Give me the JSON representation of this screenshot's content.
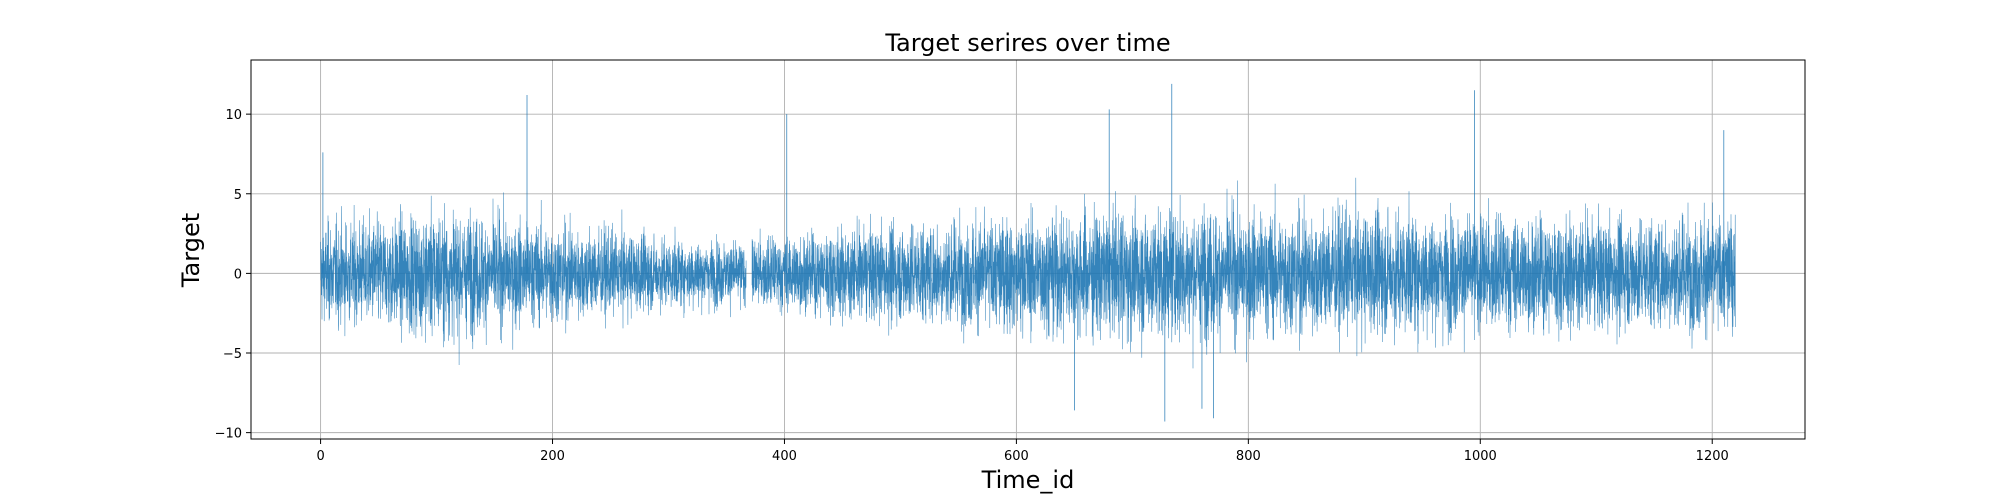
{
  "chart_data": {
    "type": "line",
    "title": "Target serires over time",
    "xlabel": "Time_id",
    "ylabel": "Target",
    "xlim": [
      -60,
      1280
    ],
    "ylim": [
      -10.4,
      13.4
    ],
    "xticks": [
      0,
      200,
      400,
      600,
      800,
      1000,
      1200
    ],
    "yticks": [
      -10,
      -5,
      0,
      5,
      10
    ],
    "grid": true,
    "line_color": "#1f77b4",
    "series": [
      {
        "x_range": [
          0,
          1220
        ],
        "gap": [
          367,
          372
        ],
        "amplitude_envelope": [
          {
            "x": 0,
            "amp": 5.0
          },
          {
            "x": 60,
            "amp": 5.5
          },
          {
            "x": 100,
            "amp": 6.5
          },
          {
            "x": 150,
            "amp": 5.5
          },
          {
            "x": 200,
            "amp": 5.0
          },
          {
            "x": 260,
            "amp": 4.2
          },
          {
            "x": 300,
            "amp": 3.5
          },
          {
            "x": 365,
            "amp": 3.2
          },
          {
            "x": 400,
            "amp": 3.8
          },
          {
            "x": 500,
            "amp": 5.0
          },
          {
            "x": 600,
            "amp": 5.8
          },
          {
            "x": 700,
            "amp": 6.5
          },
          {
            "x": 800,
            "amp": 6.2
          },
          {
            "x": 900,
            "amp": 6.3
          },
          {
            "x": 1000,
            "amp": 5.8
          },
          {
            "x": 1100,
            "amp": 5.5
          },
          {
            "x": 1220,
            "amp": 6.0
          }
        ],
        "spikes": [
          {
            "x": 2,
            "y": 7.6
          },
          {
            "x": 178,
            "y": 11.2
          },
          {
            "x": 402,
            "y": 10.0
          },
          {
            "x": 650,
            "y": -8.6
          },
          {
            "x": 680,
            "y": 10.3
          },
          {
            "x": 728,
            "y": -9.3
          },
          {
            "x": 734,
            "y": 11.9
          },
          {
            "x": 760,
            "y": -8.5
          },
          {
            "x": 770,
            "y": -9.1
          },
          {
            "x": 995,
            "y": 11.5
          },
          {
            "x": 1210,
            "y": 9.0
          }
        ]
      }
    ]
  }
}
